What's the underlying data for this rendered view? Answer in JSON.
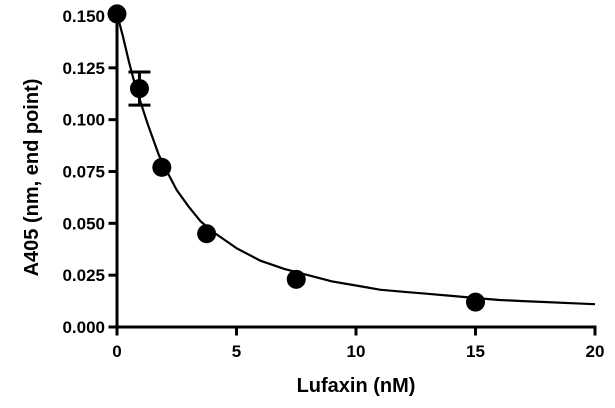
{
  "chart_data": {
    "type": "scatter",
    "xlabel": "Lufaxin (nM)",
    "ylabel": "A405 (nm, end point)",
    "xlim": [
      0,
      20
    ],
    "ylim": [
      0,
      0.15
    ],
    "x_ticks": [
      0,
      5,
      10,
      15,
      20
    ],
    "x_tick_labels": [
      "0",
      "5",
      "10",
      "15",
      "20"
    ],
    "y_ticks": [
      0,
      0.025,
      0.05,
      0.075,
      0.1,
      0.125,
      0.15
    ],
    "y_tick_labels": [
      "0.000",
      "0.025",
      "0.050",
      "0.075",
      "0.100",
      "0.125",
      "0.150"
    ],
    "grid": false,
    "series": [
      {
        "points": [
          {
            "x": 0,
            "y": 0.151
          },
          {
            "x": 0.94,
            "y": 0.115,
            "error": 0.008
          },
          {
            "x": 1.875,
            "y": 0.077
          },
          {
            "x": 3.75,
            "y": 0.045
          },
          {
            "x": 7.5,
            "y": 0.023
          },
          {
            "x": 15,
            "y": 0.012
          }
        ]
      }
    ],
    "fit_curve": {
      "x": [
        0,
        0.25,
        0.5,
        0.75,
        1,
        1.25,
        1.5,
        1.75,
        2,
        2.5,
        3,
        3.5,
        4,
        4.5,
        5,
        6,
        7,
        8,
        9,
        10,
        11,
        12,
        13,
        14,
        15,
        16,
        17,
        18,
        19,
        20
      ],
      "y": [
        0.151,
        0.14,
        0.128,
        0.117,
        0.108,
        0.099,
        0.091,
        0.083,
        0.077,
        0.066,
        0.058,
        0.051,
        0.046,
        0.042,
        0.038,
        0.032,
        0.028,
        0.025,
        0.022,
        0.02,
        0.018,
        0.017,
        0.016,
        0.015,
        0.014,
        0.013,
        0.0125,
        0.012,
        0.0115,
        0.011
      ]
    }
  }
}
